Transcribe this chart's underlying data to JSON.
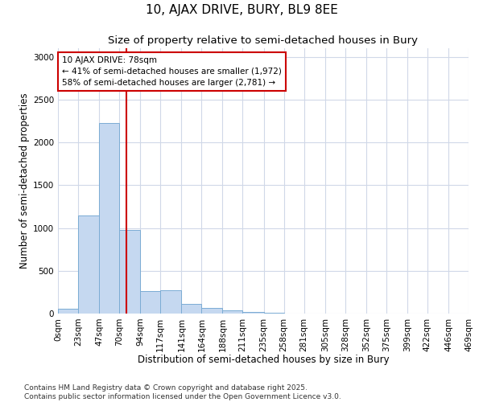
{
  "title": "10, AJAX DRIVE, BURY, BL9 8EE",
  "subtitle": "Size of property relative to semi-detached houses in Bury",
  "xlabel": "Distribution of semi-detached houses by size in Bury",
  "ylabel": "Number of semi-detached properties",
  "footer_line1": "Contains HM Land Registry data © Crown copyright and database right 2025.",
  "footer_line2": "Contains public sector information licensed under the Open Government Licence v3.0.",
  "annotation_line1": "10 AJAX DRIVE: 78sqm",
  "annotation_line2": "← 41% of semi-detached houses are smaller (1,972)",
  "annotation_line3": "58% of semi-detached houses are larger (2,781) →",
  "property_size": 78,
  "bin_edges": [
    0,
    23,
    47,
    70,
    94,
    117,
    141,
    164,
    188,
    211,
    235,
    258,
    281,
    305,
    328,
    352,
    375,
    399,
    422,
    446,
    469
  ],
  "bin_labels": [
    "0sqm",
    "23sqm",
    "47sqm",
    "70sqm",
    "94sqm",
    "117sqm",
    "141sqm",
    "164sqm",
    "188sqm",
    "211sqm",
    "235sqm",
    "258sqm",
    "281sqm",
    "305sqm",
    "328sqm",
    "352sqm",
    "375sqm",
    "399sqm",
    "422sqm",
    "446sqm",
    "469sqm"
  ],
  "bar_heights": [
    60,
    1150,
    2230,
    975,
    265,
    270,
    110,
    65,
    40,
    20,
    8,
    3,
    1,
    0,
    0,
    0,
    0,
    0,
    0,
    0
  ],
  "bar_color": "#c5d8f0",
  "bar_edgecolor": "#7bacd4",
  "redline_color": "#cc0000",
  "annotation_box_edgecolor": "#cc0000",
  "grid_color": "#d0d8e8",
  "background_color": "#ffffff",
  "ylim": [
    0,
    3100
  ],
  "yticks": [
    0,
    500,
    1000,
    1500,
    2000,
    2500,
    3000
  ],
  "title_fontsize": 11,
  "subtitle_fontsize": 9.5,
  "axis_label_fontsize": 8.5,
  "tick_fontsize": 7.5,
  "annotation_fontsize": 7.5,
  "footer_fontsize": 6.5
}
